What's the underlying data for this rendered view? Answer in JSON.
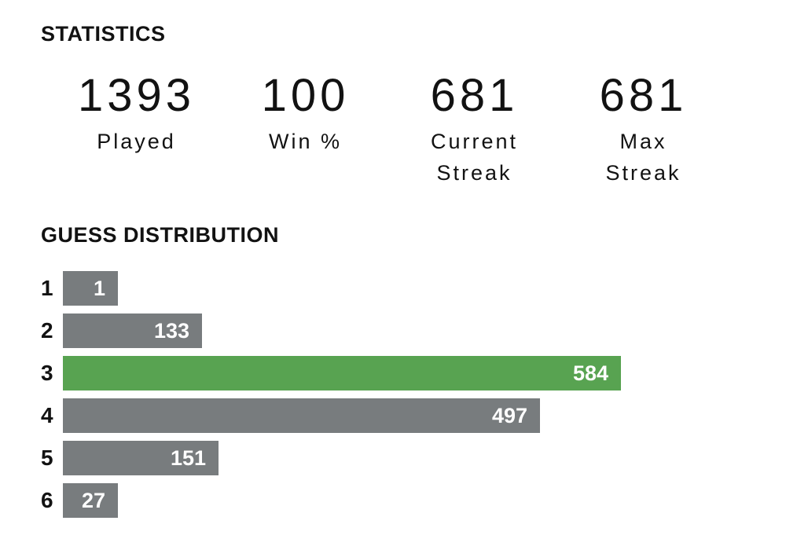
{
  "statistics": {
    "title": "STATISTICS",
    "stats": [
      {
        "value": "1393",
        "label": "Played"
      },
      {
        "value": "100",
        "label": "Win %"
      },
      {
        "value": "681",
        "label": "Current\nStreak"
      },
      {
        "value": "681",
        "label": "Max\nStreak"
      }
    ]
  },
  "guess_distribution": {
    "title": "GUESS DISTRIBUTION"
  },
  "chart_data": {
    "type": "bar",
    "orientation": "horizontal",
    "title": "GUESS DISTRIBUTION",
    "categories": [
      "1",
      "2",
      "3",
      "4",
      "5",
      "6"
    ],
    "values": [
      1,
      133,
      584,
      497,
      151,
      27
    ],
    "max_value": 584,
    "highlighted_index": 2,
    "legend": "none",
    "grid": false,
    "colors": {
      "bar": "#787c7e",
      "highlight": "#58a351",
      "value_text": "#ffffff",
      "text": "#121212",
      "background": "#ffffff"
    }
  }
}
